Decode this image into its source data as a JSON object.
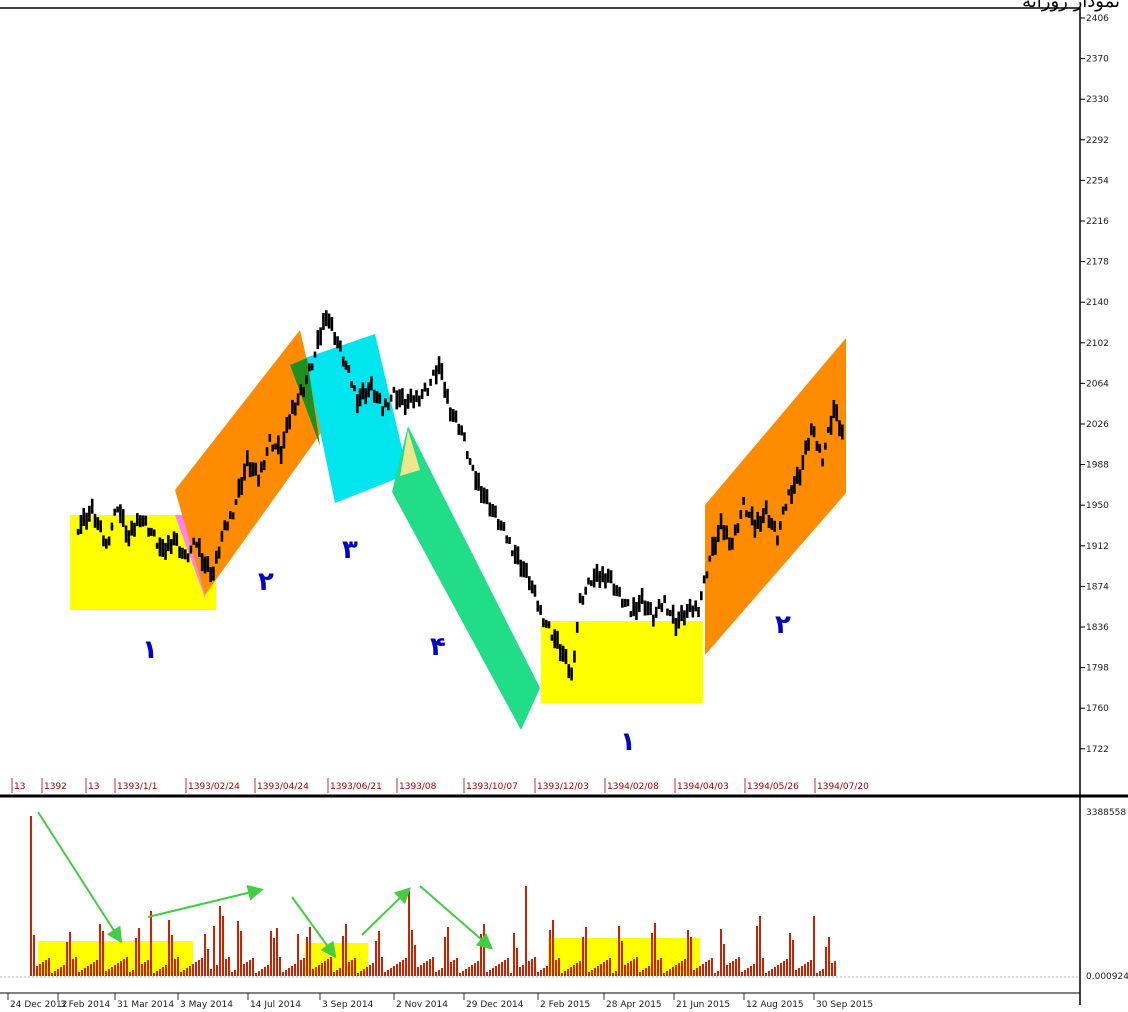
{
  "header": {
    "title": "نمودار روزانه"
  },
  "chart_data": [
    {
      "type": "candlestick",
      "panel": "price",
      "y_ticks": [
        "2406",
        "2370",
        "2330",
        "2292",
        "2254",
        "2216",
        "2178",
        "2140",
        "2102",
        "2064",
        "2026",
        "1988",
        "1950",
        "1912",
        "1874",
        "1836",
        "1798",
        "1760",
        "1722"
      ],
      "top_date_labels": [
        "13",
        "1392",
        "13",
        "1393/1/1",
        "1393/02/24",
        "1393/04/24",
        "1393/06/21",
        "1393/08",
        "1393/10/07",
        "1393/12/03",
        "1394/02/08",
        "1394/04/03",
        "1394/05/26",
        "1394/07/20"
      ],
      "zones": [
        {
          "shape": "rect",
          "color": "#ffff00",
          "label": "۱"
        },
        {
          "shape": "triangle",
          "color": "#ff80ff"
        },
        {
          "shape": "parallelogram",
          "color": "#ff8c00",
          "label": "۲"
        },
        {
          "shape": "triangle",
          "color": "#1f8f1f"
        },
        {
          "shape": "parallelogram",
          "color": "#00e5ee",
          "label": "۳"
        },
        {
          "shape": "triangle",
          "color": "#f0e68c"
        },
        {
          "shape": "parallelogram",
          "color": "#22dd88",
          "label": "۴"
        },
        {
          "shape": "rect",
          "color": "#ffff00",
          "label": "۱"
        },
        {
          "shape": "parallelogram",
          "color": "#ff8c00",
          "label": "۲"
        }
      ],
      "price_path": [
        [
          0,
          1930
        ],
        [
          5,
          1945
        ],
        [
          10,
          1912
        ],
        [
          14,
          1950
        ],
        [
          18,
          1918
        ],
        [
          22,
          1940
        ],
        [
          26,
          1925
        ],
        [
          30,
          1905
        ],
        [
          34,
          1920
        ],
        [
          38,
          1900
        ],
        [
          42,
          1915
        ],
        [
          45,
          1895
        ],
        [
          48,
          1886
        ],
        [
          51,
          1920
        ],
        [
          55,
          1945
        ],
        [
          60,
          1990
        ],
        [
          64,
          1975
        ],
        [
          68,
          2010
        ],
        [
          72,
          2000
        ],
        [
          76,
          2040
        ],
        [
          80,
          2060
        ],
        [
          84,
          2090
        ],
        [
          88,
          2130
        ],
        [
          91,
          2110
        ],
        [
          95,
          2080
        ],
        [
          99,
          2050
        ],
        [
          104,
          2060
        ],
        [
          108,
          2040
        ],
        [
          112,
          2055
        ],
        [
          116,
          2045
        ],
        [
          120,
          2050
        ],
        [
          124,
          2060
        ],
        [
          128,
          2080
        ],
        [
          132,
          2040
        ],
        [
          136,
          2020
        ],
        [
          140,
          1980
        ],
        [
          144,
          1960
        ],
        [
          148,
          1940
        ],
        [
          152,
          1920
        ],
        [
          156,
          1900
        ],
        [
          160,
          1880
        ],
        [
          164,
          1850
        ],
        [
          168,
          1830
        ],
        [
          172,
          1810
        ],
        [
          175,
          1790
        ],
        [
          178,
          1860
        ],
        [
          182,
          1880
        ],
        [
          188,
          1885
        ],
        [
          192,
          1865
        ],
        [
          196,
          1850
        ],
        [
          200,
          1862
        ],
        [
          204,
          1845
        ],
        [
          208,
          1860
        ],
        [
          212,
          1840
        ],
        [
          216,
          1850
        ],
        [
          220,
          1855
        ],
        [
          224,
          1900
        ],
        [
          228,
          1930
        ],
        [
          232,
          1915
        ],
        [
          236,
          1950
        ],
        [
          240,
          1930
        ],
        [
          244,
          1945
        ],
        [
          248,
          1920
        ],
        [
          252,
          1960
        ],
        [
          256,
          1980
        ],
        [
          260,
          2020
        ],
        [
          264,
          1995
        ],
        [
          268,
          2040
        ],
        [
          272,
          2010
        ]
      ]
    },
    {
      "type": "bar",
      "panel": "volume",
      "y_ticks": [
        "3388558",
        "0.000924"
      ],
      "bottom_date_labels": [
        "24 Dec 2012",
        "3 Feb 2014",
        "31 Mar 2014",
        "3 May 2014",
        "14 Jul 2014",
        "3 Sep 2014",
        "2 Nov 2014",
        "29 Dec 2014",
        "2 Feb 2015",
        "28 Apr 2015",
        "21 Jun 2015",
        "12 Aug 2015",
        "30 Sep 2015"
      ],
      "highlight_color": "#ffff00",
      "arrow_color": "#44cc44",
      "up_color": "#1f8f1f",
      "down_color": "#cc2200"
    }
  ]
}
